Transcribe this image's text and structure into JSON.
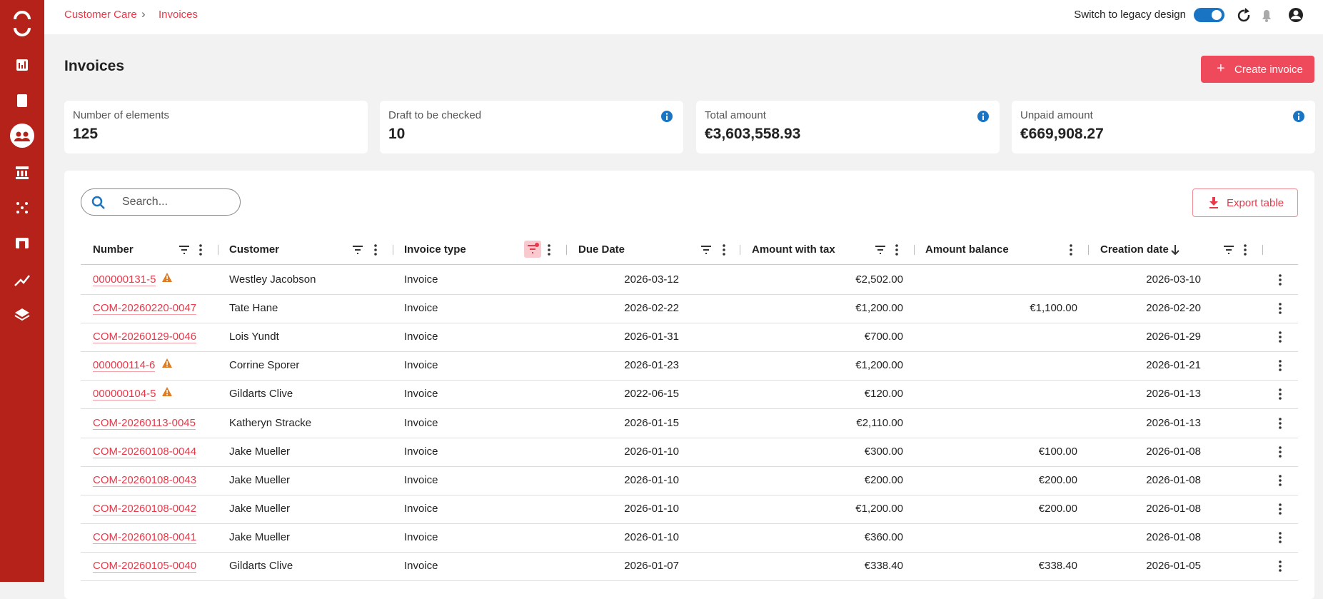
{
  "breadcrumb": [
    "Customer Care",
    "Invoices"
  ],
  "top_bar": {
    "legacy_switch": "Switch to legacy design"
  },
  "header": {
    "title": "Invoices",
    "create_button": "Create invoice"
  },
  "cards": [
    {
      "label": "Number of elements",
      "value": "125",
      "info": false
    },
    {
      "label": "Draft to be checked",
      "value": "10",
      "info": true
    },
    {
      "label": "Total amount",
      "value": "€3,603,558.93",
      "info": true
    },
    {
      "label": "Unpaid amount",
      "value": "€669,908.27",
      "info": true
    }
  ],
  "search": {
    "placeholder": "Search..."
  },
  "export_button": "Export table",
  "table": {
    "columns": [
      "Number",
      "Customer",
      "Invoice type",
      "Due Date",
      "Amount with tax",
      "Amount balance",
      "Creation date"
    ],
    "rows": [
      {
        "number": "000000131-5",
        "warning": true,
        "customer": "Westley Jacobson",
        "type": "Invoice",
        "due_date": "2026-03-12",
        "amount_with_tax": "€2,502.00",
        "amount_balance": null,
        "creation_date": "2026-03-10"
      },
      {
        "number": "COM-20260220-0047",
        "warning": false,
        "customer": "Tate Hane",
        "type": "Invoice",
        "due_date": "2026-02-22",
        "amount_with_tax": "€1,200.00",
        "amount_balance": "€1,100.00",
        "creation_date": "2026-02-20"
      },
      {
        "number": "COM-20260129-0046",
        "warning": false,
        "customer": "Lois Yundt",
        "type": "Invoice",
        "due_date": "2026-01-31",
        "amount_with_tax": "€700.00",
        "amount_balance": null,
        "creation_date": "2026-01-29"
      },
      {
        "number": "000000114-6",
        "warning": true,
        "customer": "Corrine Sporer",
        "type": "Invoice",
        "due_date": "2026-01-23",
        "amount_with_tax": "€1,200.00",
        "amount_balance": null,
        "creation_date": "2026-01-21"
      },
      {
        "number": "000000104-5",
        "warning": true,
        "customer": "Gildarts Clive",
        "type": "Invoice",
        "due_date": "2022-06-15",
        "amount_with_tax": "€120.00",
        "amount_balance": null,
        "creation_date": "2026-01-13"
      },
      {
        "number": "COM-20260113-0045",
        "warning": false,
        "customer": "Katheryn Stracke",
        "type": "Invoice",
        "due_date": "2026-01-15",
        "amount_with_tax": "€2,110.00",
        "amount_balance": null,
        "creation_date": "2026-01-13"
      },
      {
        "number": "COM-20260108-0044",
        "warning": false,
        "customer": "Jake Mueller",
        "type": "Invoice",
        "due_date": "2026-01-10",
        "amount_with_tax": "€300.00",
        "amount_balance": "€100.00",
        "creation_date": "2026-01-08"
      },
      {
        "number": "COM-20260108-0043",
        "warning": false,
        "customer": "Jake Mueller",
        "type": "Invoice",
        "due_date": "2026-01-10",
        "amount_with_tax": "€200.00",
        "amount_balance": "€200.00",
        "creation_date": "2026-01-08"
      },
      {
        "number": "COM-20260108-0042",
        "warning": false,
        "customer": "Jake Mueller",
        "type": "Invoice",
        "due_date": "2026-01-10",
        "amount_with_tax": "€1,200.00",
        "amount_balance": "€200.00",
        "creation_date": "2026-01-08"
      },
      {
        "number": "COM-20260108-0041",
        "warning": false,
        "customer": "Jake Mueller",
        "type": "Invoice",
        "due_date": "2026-01-10",
        "amount_with_tax": "€360.00",
        "amount_balance": null,
        "creation_date": "2026-01-08"
      },
      {
        "number": "COM-20260105-0040",
        "warning": false,
        "customer": "Gildarts Clive",
        "type": "Invoice",
        "due_date": "2026-01-07",
        "amount_with_tax": "€338.40",
        "amount_balance": "€338.40",
        "creation_date": "2026-01-05"
      }
    ]
  }
}
